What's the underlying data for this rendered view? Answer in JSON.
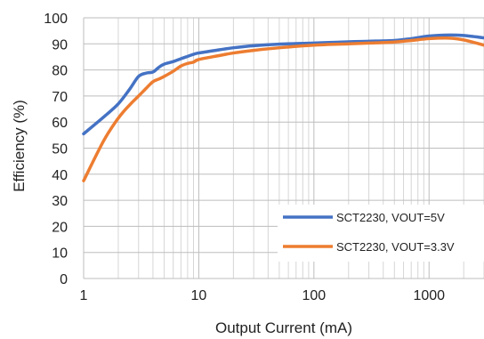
{
  "chart_data": {
    "type": "line",
    "title": "",
    "xlabel": "Output Current (mA)",
    "ylabel": "Efficiency (%)",
    "x_scale": "log",
    "xlim": [
      1,
      3000
    ],
    "ylim": [
      0,
      100
    ],
    "x_ticks": [
      "1",
      "10",
      "100",
      "1000"
    ],
    "y_ticks": [
      "0",
      "10",
      "20",
      "30",
      "40",
      "50",
      "60",
      "70",
      "80",
      "90",
      "100"
    ],
    "grid": true,
    "legend_position": "bottom-right",
    "series": [
      {
        "name": "SCT2230, VOUT=5V",
        "color": "#4472C4",
        "x": [
          1,
          1.5,
          2,
          2.5,
          3,
          3.5,
          4,
          4.5,
          5,
          6,
          7,
          8,
          9,
          10,
          15,
          20,
          30,
          50,
          100,
          200,
          300,
          500,
          700,
          1000,
          1500,
          2000,
          3000
        ],
        "y": [
          55.5,
          62,
          67,
          72.5,
          77.5,
          78.8,
          79.2,
          81,
          82.2,
          83.2,
          84.3,
          85.2,
          86,
          86.5,
          87.7,
          88.5,
          89.3,
          89.9,
          90.3,
          90.8,
          91,
          91.3,
          92,
          93,
          93.4,
          93.2,
          92.3
        ]
      },
      {
        "name": "SCT2230, VOUT=3.3V",
        "color": "#ED7D31",
        "x": [
          1,
          1.5,
          2,
          2.5,
          3,
          3.5,
          4,
          4.5,
          5,
          6,
          7,
          8,
          9,
          10,
          15,
          20,
          30,
          50,
          100,
          200,
          300,
          500,
          700,
          1000,
          1500,
          2000,
          3000
        ],
        "y": [
          37.5,
          53,
          61.5,
          66.5,
          70,
          73,
          75.5,
          76.5,
          77.5,
          79.5,
          81.5,
          82.5,
          83,
          84,
          85.5,
          86.5,
          87.5,
          88.5,
          89.5,
          90,
          90.3,
          90.7,
          91.3,
          92,
          92.2,
          91.5,
          89.5
        ]
      }
    ]
  }
}
